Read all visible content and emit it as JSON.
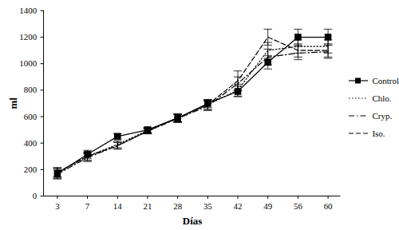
{
  "chart_data": {
    "type": "line",
    "x_label": "Días",
    "y_label": "ml",
    "categories": [
      "3",
      "7",
      "14",
      "21",
      "28",
      "35",
      "42",
      "49",
      "56",
      "60"
    ],
    "ylim": [
      0,
      1400
    ],
    "yticks": [
      0,
      200,
      400,
      600,
      800,
      1000,
      1200,
      1400
    ],
    "grid": false,
    "legend": "right",
    "series": [
      {
        "name": "Control",
        "color": "#000000",
        "line_style": "solid",
        "marker": "square",
        "values": [
          170,
          315,
          450,
          500,
          590,
          700,
          790,
          1010,
          1200,
          1200
        ],
        "errors": [
          40,
          30,
          20,
          20,
          30,
          30,
          40,
          50,
          60,
          60
        ]
      },
      {
        "name": "Chlo.",
        "color": "#000000",
        "line_style": "dotted",
        "marker": "none",
        "values": [
          175,
          300,
          390,
          495,
          590,
          690,
          800,
          1100,
          1130,
          1130
        ],
        "errors": [
          35,
          30,
          25,
          20,
          30,
          35,
          45,
          60,
          50,
          50
        ]
      },
      {
        "name": "Cryp.",
        "color": "#000000",
        "line_style": "dashdot",
        "marker": "none",
        "values": [
          165,
          290,
          380,
          490,
          585,
          680,
          850,
          1050,
          1080,
          1090
        ],
        "errors": [
          35,
          30,
          25,
          20,
          30,
          35,
          50,
          60,
          50,
          50
        ]
      },
      {
        "name": "Iso.",
        "color": "#000000",
        "line_style": "dashed",
        "marker": "none",
        "values": [
          180,
          300,
          380,
          490,
          590,
          690,
          870,
          1200,
          1100,
          1100
        ],
        "errors": [
          35,
          30,
          25,
          20,
          30,
          35,
          75,
          60,
          50,
          50
        ]
      }
    ]
  }
}
